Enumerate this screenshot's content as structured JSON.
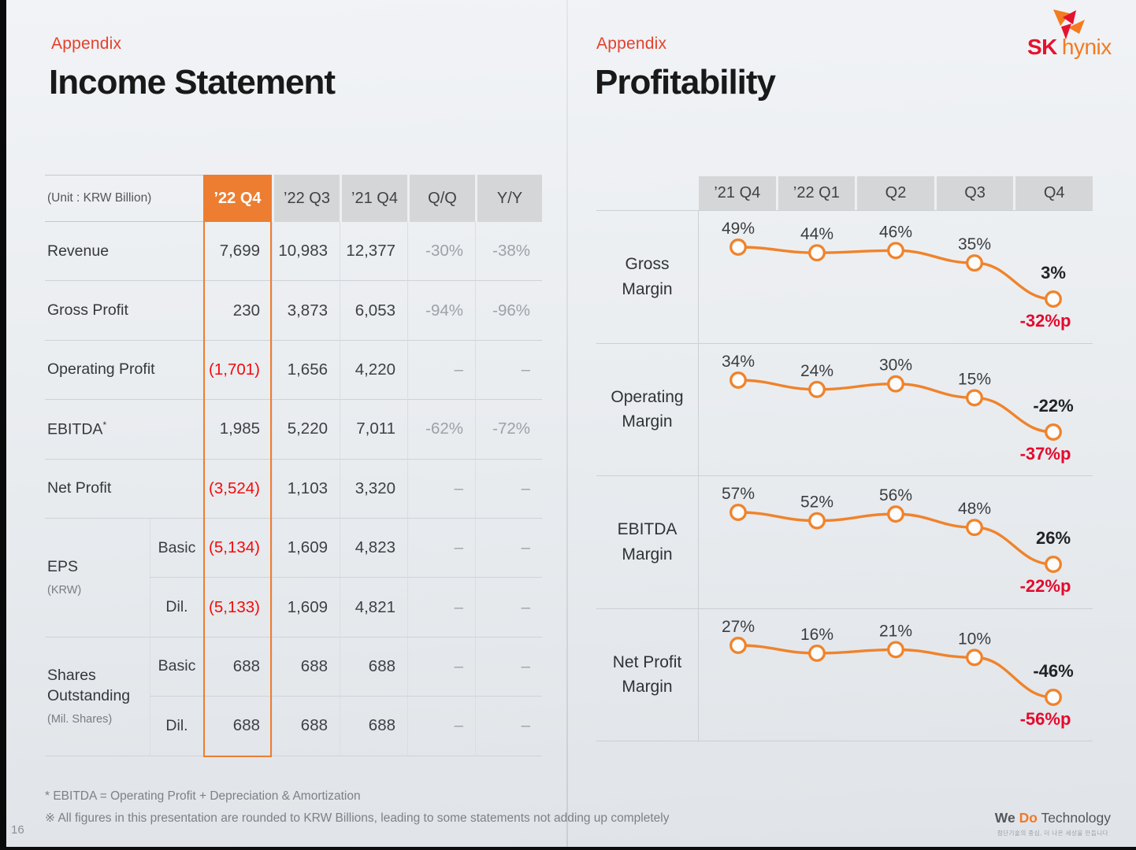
{
  "left_slide": {
    "eyebrow": "Appendix",
    "title": "Income Statement",
    "table": {
      "unit_label": "(Unit : KRW Billion)",
      "columns": [
        "’22 Q4",
        "’22 Q3",
        "’21 Q4",
        "Q/Q",
        "Y/Y"
      ],
      "highlight_column": "’22 Q4",
      "rows": [
        {
          "label": "Revenue",
          "values": [
            "7,699",
            "10,983",
            "12,377",
            "-30%",
            "-38%"
          ]
        },
        {
          "label": "Gross Profit",
          "values": [
            "230",
            "3,873",
            "6,053",
            "-94%",
            "-96%"
          ]
        },
        {
          "label": "Operating Profit",
          "values": [
            "(1,701)",
            "1,656",
            "4,220",
            "–",
            "–"
          ]
        },
        {
          "label": "EBITDA",
          "label_sup": "*",
          "values": [
            "1,985",
            "5,220",
            "7,011",
            "-62%",
            "-72%"
          ]
        },
        {
          "label": "Net Profit",
          "values": [
            "(3,524)",
            "1,103",
            "3,320",
            "–",
            "–"
          ]
        }
      ],
      "groups": [
        {
          "label": "EPS",
          "sub": "(KRW)",
          "rows": [
            {
              "sublabel": "Basic",
              "values": [
                "(5,134)",
                "1,609",
                "4,823",
                "–",
                "–"
              ]
            },
            {
              "sublabel": "Dil.",
              "values": [
                "(5,133)",
                "1,609",
                "4,821",
                "–",
                "–"
              ]
            }
          ]
        },
        {
          "label": "Shares Outstanding",
          "sub": "(Mil. Shares)",
          "rows": [
            {
              "sublabel": "Basic",
              "values": [
                "688",
                "688",
                "688",
                "–",
                "–"
              ]
            },
            {
              "sublabel": "Dil.",
              "values": [
                "688",
                "688",
                "688",
                "–",
                "–"
              ]
            }
          ]
        }
      ]
    },
    "footnotes": [
      "* EBITDA = Operating Profit + Depreciation & Amortization",
      "※ All figures in this presentation are rounded to KRW Billions, leading to some statements not adding up completely"
    ],
    "page_number": "16"
  },
  "right_slide": {
    "eyebrow": "Appendix",
    "title": "Profitability"
  },
  "chart_data": {
    "type": "line",
    "categories": [
      "’21 Q4",
      "’22 Q1",
      "Q2",
      "Q3",
      "Q4"
    ],
    "series": [
      {
        "name": "Gross Margin",
        "label_lines": [
          "Gross",
          "Margin"
        ],
        "values": [
          49,
          44,
          46,
          35,
          3
        ],
        "point_labels": [
          "49%",
          "44%",
          "46%",
          "35%",
          "3%"
        ],
        "delta": "-32%p"
      },
      {
        "name": "Operating Margin",
        "label_lines": [
          "Operating",
          "Margin"
        ],
        "values": [
          34,
          24,
          30,
          15,
          -22
        ],
        "point_labels": [
          "34%",
          "24%",
          "30%",
          "15%",
          "-22%"
        ],
        "delta": "-37%p"
      },
      {
        "name": "EBITDA Margin",
        "label_lines": [
          "EBITDA",
          "Margin"
        ],
        "values": [
          57,
          52,
          56,
          48,
          26
        ],
        "point_labels": [
          "57%",
          "52%",
          "56%",
          "48%",
          "26%"
        ],
        "delta": "-22%p"
      },
      {
        "name": "Net Profit Margin",
        "label_lines": [
          "Net Profit",
          "Margin"
        ],
        "values": [
          27,
          16,
          21,
          10,
          -46
        ],
        "point_labels": [
          "27%",
          "16%",
          "21%",
          "10%",
          "-46%"
        ],
        "delta": "-56%p"
      }
    ],
    "unit_suffix": "%",
    "legend": "none",
    "xlabel": "",
    "ylabel": "",
    "line_color": "#F0832B",
    "marker_fill": "#FCFCFD",
    "delta_color": "#E40A2D"
  },
  "brand": {
    "logo_sk": "SK",
    "logo_hynix": "hynix",
    "slogan_we": "We",
    "slogan_do": "Do",
    "slogan_tech": "Technology",
    "slogan_tagline": "첨단기술의 중심, 더 나은 세상을 만듭니다"
  },
  "colors": {
    "accent_orange": "#ED7D31",
    "negative_red": "#F30B0B",
    "header_gray": "#D5D6D8",
    "sk_red": "#E6112D",
    "hynix_orange": "#F47B20"
  }
}
